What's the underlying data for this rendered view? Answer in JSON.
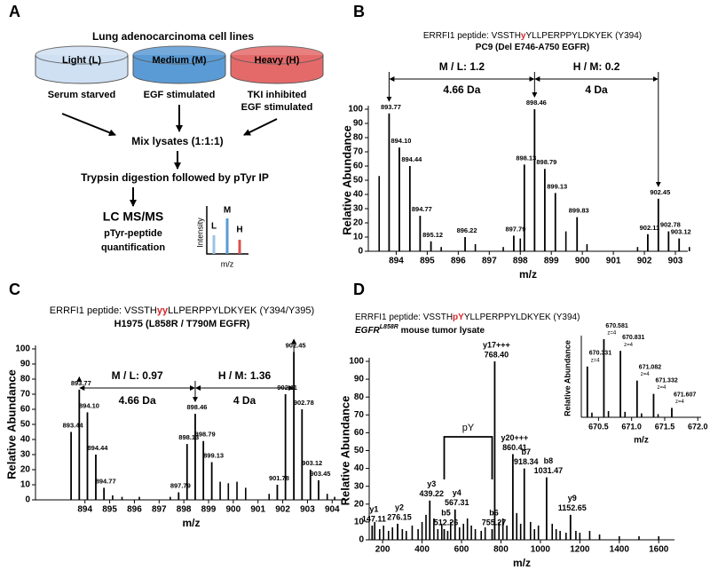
{
  "diagram": {
    "panel": "A",
    "title": "Lung adenocarcinoma cell lines",
    "dishes": [
      {
        "label": "Light (L)",
        "condition": [
          "Serum starved"
        ],
        "color": "#cfe0f3"
      },
      {
        "label": "Medium (M)",
        "condition": [
          "EGF stimulated"
        ],
        "color": "#5b9bd5"
      },
      {
        "label": "Heavy (H)",
        "condition": [
          "TKI inhibited",
          "EGF stimulated"
        ],
        "color": "#e46a6a"
      }
    ],
    "steps": [
      "Mix lysates (1:1:1)",
      "Trypsin digestion followed by pTyr IP"
    ],
    "readout": {
      "title": "LC MS/MS",
      "lines": [
        "pTyr-peptide",
        "quantification"
      ],
      "y_label": "Intensity",
      "x_label": "m/z",
      "peaks": [
        "L",
        "M",
        "H"
      ]
    }
  },
  "chart_data": [
    {
      "type": "spectrum",
      "panel": "B",
      "title": [
        {
          "text": "ERRFI1 peptide: VSSTH",
          "color": "#000000"
        },
        {
          "text": "y",
          "color": "#d62728"
        },
        {
          "text": "YLLPERPPYLDKYEK (Y394)",
          "color": "#000000"
        }
      ],
      "subtitle": [
        {
          "text": "PC9 (Del E746-A750 EGFR)",
          "style": "normal"
        }
      ],
      "x_label": "m/z",
      "y_label": "Relative Abundance",
      "color": "#000000",
      "xlim": [
        893.1,
        903.4
      ],
      "xticks": [
        894,
        895,
        896,
        897,
        898,
        899,
        900,
        901,
        902,
        903
      ],
      "ylim": [
        0,
        100
      ],
      "yticks": [
        0,
        10,
        20,
        30,
        40,
        50,
        60,
        70,
        80,
        90,
        100
      ],
      "x": [
        893.45,
        895.45,
        896.55,
        897.45,
        898.0,
        899.47,
        900.15,
        901.78,
        903.45
      ],
      "values": [
        53,
        3,
        5,
        3,
        9,
        14,
        5,
        3,
        3
      ],
      "annotated": {
        "x": [
          893.77,
          894.1,
          894.44,
          894.77,
          895.12,
          896.22,
          897.79,
          898.13,
          898.46,
          898.79,
          899.13,
          899.83,
          902.11,
          902.45,
          902.78,
          903.12
        ],
        "values": [
          97,
          73,
          60,
          25,
          7,
          10,
          11,
          61,
          100,
          58,
          41,
          24,
          12,
          37,
          14,
          9
        ],
        "x_labels": [
          "893.77",
          "894.10",
          "894.44",
          "894.77",
          "895.12",
          "896.22",
          "897.79",
          "898.13",
          "898.46",
          "898.79",
          "899.13",
          "899.83",
          "902.11",
          "902.45",
          "902.78",
          "903.12"
        ]
      },
      "brackets": [
        {
          "label": "M / L: 1.2",
          "spacing": "4.66 Da"
        },
        {
          "label": "H / M: 0.2",
          "spacing": "4 Da"
        }
      ]
    },
    {
      "type": "spectrum",
      "panel": "C",
      "title": [
        {
          "text": "ERRFI1 peptide: VSSTH",
          "color": "#000000"
        },
        {
          "text": "yy",
          "color": "#d62728"
        },
        {
          "text": "LLPERPPYLDKYEK (Y394/Y395)",
          "color": "#000000"
        }
      ],
      "subtitle": [
        {
          "text": "H1975 (L858R / T790M EGFR)",
          "style": "normal"
        }
      ],
      "x_label": "m/z",
      "y_label": "Relative Abundance",
      "color": "#000000",
      "xlim": [
        892,
        904.6
      ],
      "xticks": [
        894,
        895,
        896,
        897,
        898,
        899,
        900,
        901,
        902,
        903,
        904
      ],
      "ylim": [
        0,
        100
      ],
      "yticks": [
        0,
        10,
        20,
        30,
        40,
        50,
        60,
        70,
        80,
        90,
        100
      ],
      "x": [
        895.12,
        895.5,
        896.2,
        897.45,
        899.47,
        899.8,
        900.15,
        900.5,
        901.45,
        903.8,
        904.1
      ],
      "values": [
        3,
        2,
        2,
        2,
        12,
        11,
        12,
        8,
        4,
        4,
        2
      ],
      "annotated": {
        "x": [
          893.44,
          893.77,
          894.1,
          894.44,
          894.77,
          897.79,
          898.13,
          898.46,
          898.79,
          899.13,
          901.78,
          902.11,
          902.45,
          902.78,
          903.12,
          903.45
        ],
        "values": [
          45,
          73,
          58,
          30,
          8,
          5,
          37,
          57,
          39,
          25,
          10,
          70,
          98,
          60,
          20,
          13
        ],
        "x_labels": [
          "893.44",
          "893.77",
          "894.10",
          "894.44",
          "894.77",
          "897.79",
          "898.13",
          "898.46",
          "898.79",
          "899.13",
          "901.78",
          "902.11",
          "902.45",
          "902.78",
          "903.12",
          "903.45"
        ]
      },
      "brackets": [
        {
          "label": "M / L: 0.97",
          "spacing": "4.66 Da"
        },
        {
          "label": "H / M: 1.36",
          "spacing": "4 Da"
        }
      ]
    },
    {
      "type": "spectrum",
      "panel": "D",
      "title": [
        {
          "text": "ERRFI1 peptide: VSSTH",
          "color": "#000000"
        },
        {
          "text": "pY",
          "color": "#d62728"
        },
        {
          "text": "YLLPERPPYLDKYEK (Y394)",
          "color": "#000000"
        }
      ],
      "subtitle": [
        {
          "text": "EGFR",
          "style": "italic"
        },
        {
          "text": "L858R",
          "style": "italic superscript"
        },
        {
          "text": " mouse tumor lysate",
          "style": "normal"
        }
      ],
      "x_label": "m/z",
      "y_label": "Relative Abundance",
      "color": "#000000",
      "xlim": [
        132,
        1680
      ],
      "xticks": [
        200,
        400,
        600,
        800,
        1000,
        1200,
        1400,
        1600
      ],
      "ylim": [
        0,
        100
      ],
      "yticks": [
        0,
        10,
        20,
        30,
        40,
        50,
        60,
        70,
        80,
        90,
        100
      ],
      "x": [
        160,
        185,
        205,
        230,
        250,
        300,
        320,
        350,
        380,
        400,
        420,
        460,
        480,
        500,
        530,
        545,
        590,
        610,
        630,
        650,
        670,
        700,
        720,
        790,
        810,
        830,
        880,
        900,
        950,
        970,
        990,
        1060,
        1080,
        1100,
        1130,
        1180,
        1200,
        1250,
        1300,
        1400,
        1500,
        1600
      ],
      "values": [
        10,
        6,
        8,
        5,
        7,
        6,
        5,
        8,
        6,
        10,
        14,
        12,
        6,
        9,
        5,
        10,
        7,
        9,
        12,
        8,
        6,
        5,
        7,
        10,
        12,
        8,
        15,
        9,
        10,
        6,
        8,
        9,
        6,
        5,
        4,
        5,
        4,
        5,
        3,
        2,
        2,
        2
      ],
      "annotated": {
        "x": [
          147.11,
          276.15,
          439.22,
          512.26,
          567.31,
          755.27,
          768.4,
          860.41,
          918.34,
          1031.47,
          1152.65
        ],
        "values": [
          8,
          9,
          22,
          6,
          17,
          6,
          100,
          48,
          40,
          35,
          14
        ],
        "ions": [
          "y1",
          "y2",
          "y3",
          "b5",
          "y4",
          "b6",
          "y17+++",
          "y20+++",
          "b7",
          "b8",
          "y9"
        ],
        "x_labels": [
          "147.11",
          "276.15",
          "439.22",
          "512.26",
          "567.31",
          "755.27",
          "768.40",
          "860.41",
          "918.34",
          "1031.47",
          "1152.65"
        ]
      },
      "modification": {
        "label": "pY",
        "color": "#d62728"
      }
    },
    {
      "type": "spectrum",
      "x_label": "m/z",
      "y_label": "Relative Abundance",
      "color": "#000000",
      "xlim": [
        670.24,
        672.05
      ],
      "xticks": [
        670.5,
        {
          "value": 671,
          "label": "671.0"
        },
        671.5,
        {
          "value": 672,
          "label": "672.0"
        }
      ],
      "ylim": [
        0,
        100
      ],
      "x": [
        670.4,
        670.65,
        670.9,
        671.15,
        671.4
      ],
      "values": [
        6,
        8,
        7,
        5,
        4
      ],
      "annotated": {
        "x": [
          670.331,
          670.581,
          670.831,
          671.082,
          671.332,
          671.607
        ],
        "values": [
          65,
          100,
          85,
          47,
          30,
          12
        ],
        "x_labels": [
          "670.331",
          "670.581",
          "670.831",
          "671.082",
          "671.332",
          "671.607"
        ],
        "charge_labels": [
          "z=4",
          "z=4",
          "z=4",
          "z=4",
          "z=4",
          "z=4"
        ]
      }
    }
  ]
}
